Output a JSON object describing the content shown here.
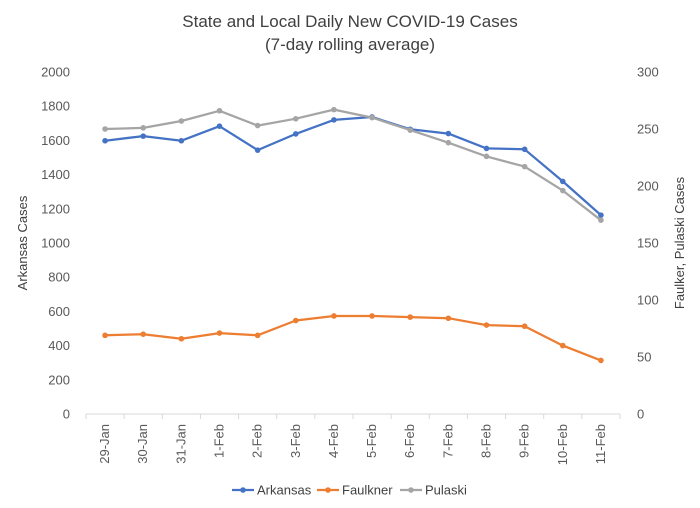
{
  "chart_data": {
    "type": "line",
    "title": "State and Local Daily New COVID-19 Cases",
    "subtitle": "(7-day rolling average)",
    "categories": [
      "29-Jan",
      "30-Jan",
      "31-Jan",
      "1-Feb",
      "2-Feb",
      "3-Feb",
      "4-Feb",
      "5-Feb",
      "6-Feb",
      "7-Feb",
      "8-Feb",
      "9-Feb",
      "10-Feb",
      "11-Feb"
    ],
    "ylabel_left": "Arkansas Cases",
    "ylabel_right": "Faulker, Pulaski Cases",
    "ylim_left": [
      0,
      2000
    ],
    "ylim_right": [
      0,
      300
    ],
    "yticks_left": [
      "0",
      "200",
      "400",
      "600",
      "800",
      "1000",
      "1200",
      "1400",
      "1600",
      "1800",
      "2000"
    ],
    "yticks_right": [
      "0",
      "50",
      "100",
      "150",
      "200",
      "250",
      "300"
    ],
    "grid": false,
    "legend_position": "bottom",
    "series": [
      {
        "name": "Arkansas",
        "axis": "left",
        "color": "#4472C4",
        "values": [
          1598,
          1625,
          1598,
          1683,
          1543,
          1638,
          1720,
          1737,
          1665,
          1640,
          1553,
          1548,
          1360,
          1163
        ]
      },
      {
        "name": "Faulkner",
        "axis": "right",
        "color": "#ED7D31",
        "values": [
          69,
          70,
          66,
          71,
          69,
          82,
          86,
          86,
          85,
          84,
          78,
          77,
          60,
          47
        ]
      },
      {
        "name": "Pulaski",
        "axis": "right",
        "color": "#A5A5A5",
        "values": [
          250,
          251,
          257,
          266,
          253,
          259,
          267,
          260,
          249,
          238,
          226,
          217,
          196,
          170
        ]
      }
    ]
  }
}
